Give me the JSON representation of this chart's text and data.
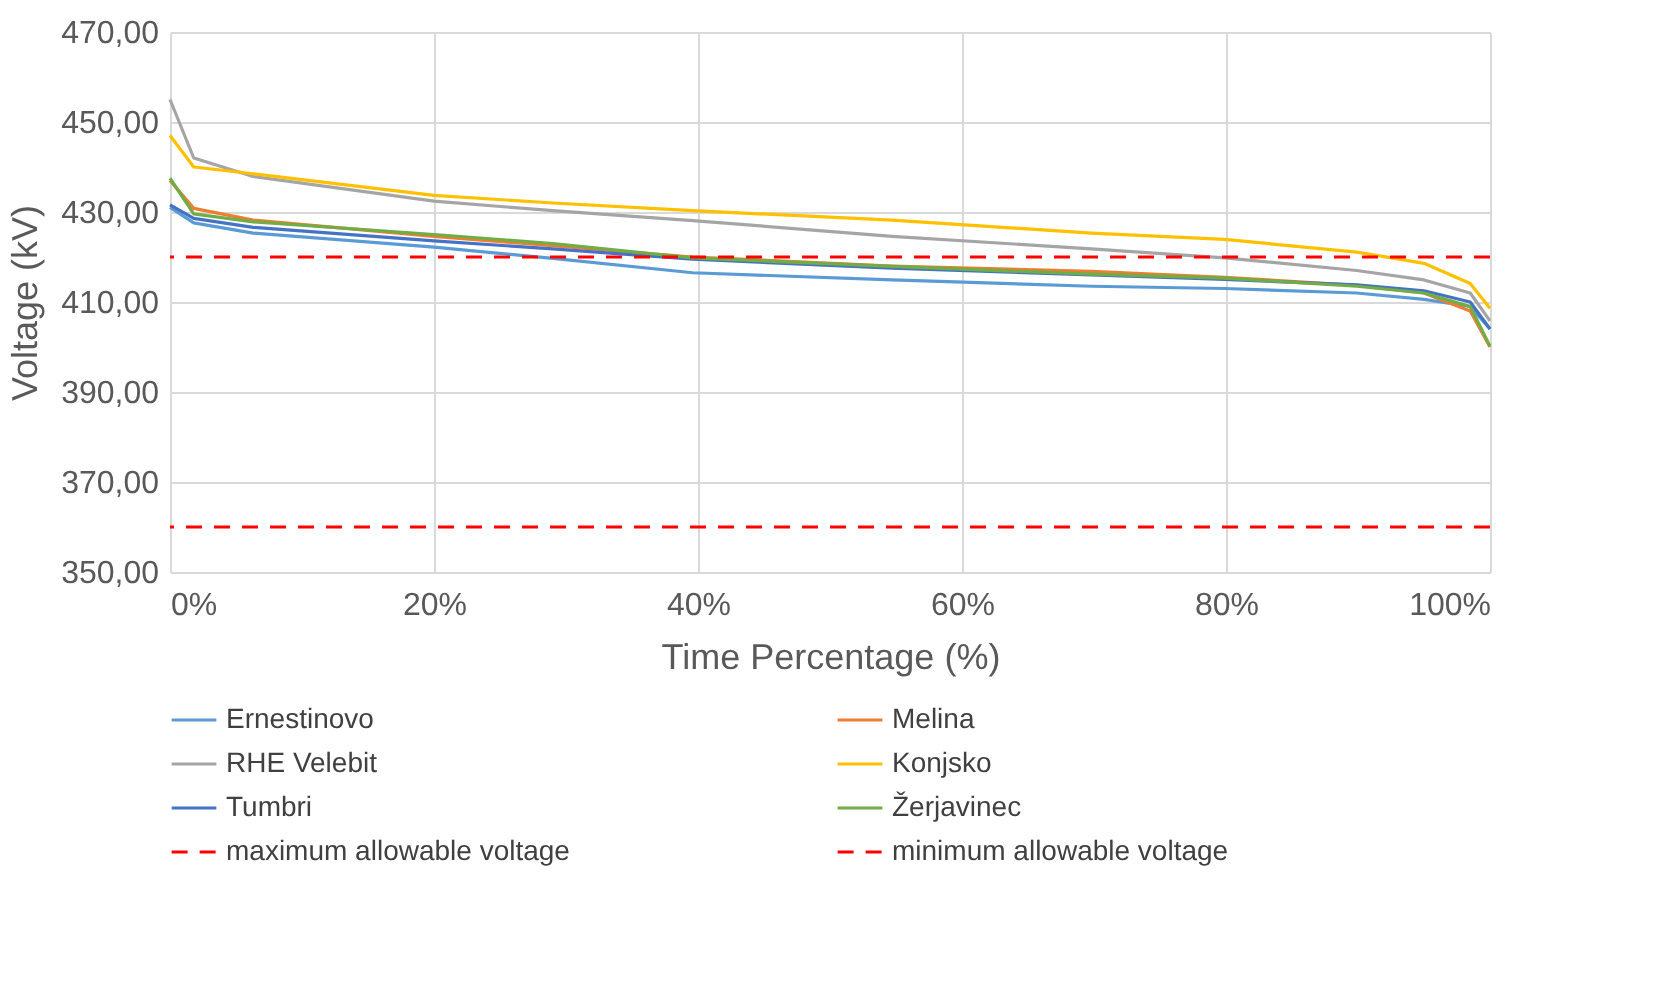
{
  "chart_data": {
    "type": "line",
    "xlabel": "Time Percentage (%)",
    "ylabel": "Voltage (kV)",
    "x": [
      0,
      1.8,
      6.3,
      20,
      29,
      39.6,
      54.7,
      69.8,
      79.9,
      89.9,
      95,
      98.5,
      100
    ],
    "xlim": [
      0,
      100
    ],
    "xticks": [
      {
        "value": 0,
        "label": "0%"
      },
      {
        "value": 20,
        "label": "20%"
      },
      {
        "value": 40,
        "label": "40%"
      },
      {
        "value": 60,
        "label": "60%"
      },
      {
        "value": 80,
        "label": "80%"
      },
      {
        "value": 100,
        "label": "100%"
      }
    ],
    "ylim": [
      350,
      470
    ],
    "yticks": [
      {
        "value": 350,
        "label": "350,00"
      },
      {
        "value": 370,
        "label": "370,00"
      },
      {
        "value": 390,
        "label": "390,00"
      },
      {
        "value": 410,
        "label": "410,00"
      },
      {
        "value": 430,
        "label": "430,00"
      },
      {
        "value": 450,
        "label": "450,00"
      },
      {
        "value": 470,
        "label": "470,00"
      }
    ],
    "grid": true,
    "legend": "bottom",
    "marker": "none",
    "series": [
      {
        "name": "Ernestinovo",
        "color": "#5b9bd5",
        "line_style": "solid",
        "values": [
          431,
          427.6,
          425.3,
          422.2,
          419.7,
          416.5,
          414.9,
          413.5,
          413,
          412,
          410.6,
          409,
          404
        ]
      },
      {
        "name": "Melina",
        "color": "#ed7d31",
        "line_style": "solid",
        "values": [
          437,
          430.8,
          428.2,
          424.6,
          422.5,
          420,
          418,
          416.8,
          415.5,
          413.7,
          412,
          408,
          400
        ]
      },
      {
        "name": "RHE Velebit",
        "color": "#a5a5a5",
        "line_style": "solid",
        "values": [
          455,
          442,
          437.9,
          432.4,
          430.3,
          428.1,
          424.6,
          421.8,
          419.8,
          417,
          414.9,
          412,
          405.8
        ]
      },
      {
        "name": "Konjsko",
        "color": "#ffc000",
        "line_style": "solid",
        "values": [
          447,
          440,
          438.5,
          433.7,
          432,
          430.3,
          428.2,
          425.3,
          423.9,
          421.1,
          418.6,
          414.1,
          408.6
        ]
      },
      {
        "name": "Tumbri",
        "color": "#4472c4",
        "line_style": "solid",
        "values": [
          431.6,
          428.6,
          426.6,
          423.6,
          421.8,
          419.5,
          417.5,
          416,
          415,
          413.8,
          412.5,
          410,
          404
        ]
      },
      {
        "name": "Žerjavinec",
        "color": "#70ad47",
        "line_style": "solid",
        "values": [
          437.5,
          429.6,
          427.8,
          425,
          423,
          419.8,
          417.9,
          416.2,
          415.3,
          413.5,
          412,
          409,
          400.2
        ]
      }
    ],
    "ref_lines": [
      {
        "axis": "y",
        "value": 420,
        "label": "maximum allowable voltage",
        "color": "#ff0000",
        "line_style": "dashed"
      },
      {
        "axis": "y",
        "value": 360,
        "label": "minimum allowable voltage",
        "color": "#ff0000",
        "line_style": "dashed"
      }
    ]
  }
}
